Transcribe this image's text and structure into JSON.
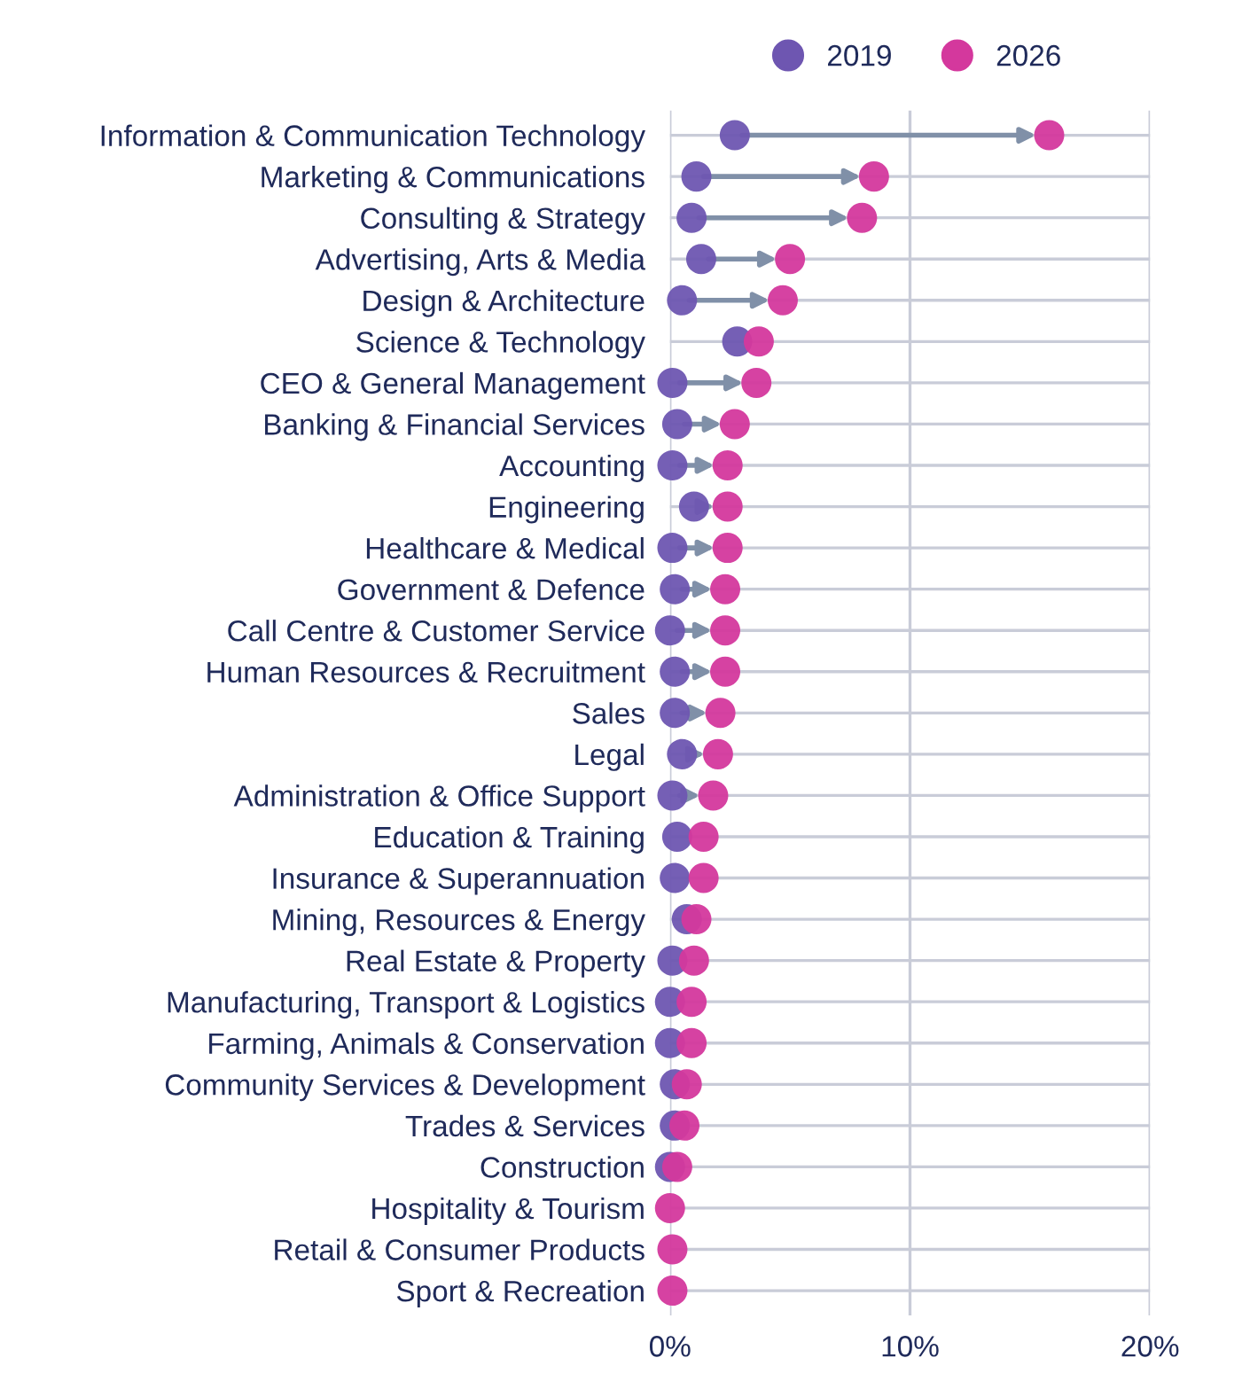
{
  "chart_data": {
    "type": "scatter",
    "orientation": "horizontal",
    "categories": [
      "Information & Communication Technology",
      "Marketing & Communications",
      "Consulting & Strategy",
      "Advertising, Arts & Media",
      "Design & Architecture",
      "Science & Technology",
      "CEO & General Management",
      "Banking & Financial Services",
      "Accounting",
      "Engineering",
      "Healthcare & Medical",
      "Government & Defence",
      "Call Centre & Customer Service",
      "Human Resources & Recruitment",
      "Sales",
      "Legal",
      "Administration & Office Support",
      "Education & Training",
      "Insurance & Superannuation",
      "Mining, Resources & Energy",
      "Real Estate & Property",
      "Manufacturing, Transport & Logistics",
      "Farming, Animals & Conservation",
      "Community Services & Development",
      "Trades & Services",
      "Construction",
      "Hospitality & Tourism",
      "Retail & Consumer Products",
      "Sport & Recreation"
    ],
    "series": [
      {
        "name": "2019",
        "color": "#6e56b1",
        "values": [
          2.7,
          1.1,
          0.9,
          1.3,
          0.5,
          2.8,
          0.1,
          0.3,
          0.1,
          1.0,
          0.1,
          0.2,
          0.0,
          0.2,
          0.2,
          0.5,
          0.1,
          0.3,
          0.2,
          0.7,
          0.1,
          0.0,
          0.0,
          0.2,
          0.2,
          0.0,
          null,
          null,
          null
        ]
      },
      {
        "name": "2026",
        "color": "#d4389d",
        "values": [
          15.8,
          8.5,
          8.0,
          5.0,
          4.7,
          3.7,
          3.6,
          2.7,
          2.4,
          2.4,
          2.4,
          2.3,
          2.3,
          2.3,
          2.1,
          2.0,
          1.8,
          1.4,
          1.4,
          1.1,
          1.0,
          0.9,
          0.9,
          0.7,
          0.6,
          0.3,
          0.0,
          0.1,
          0.1
        ]
      }
    ],
    "xlim": [
      0,
      20
    ],
    "xticks": [
      {
        "value": 0,
        "label": "0%"
      },
      {
        "value": 10,
        "label": "10%"
      },
      {
        "value": 20,
        "label": "20%"
      }
    ],
    "grid": true,
    "legend": "top",
    "marker": "circle"
  }
}
